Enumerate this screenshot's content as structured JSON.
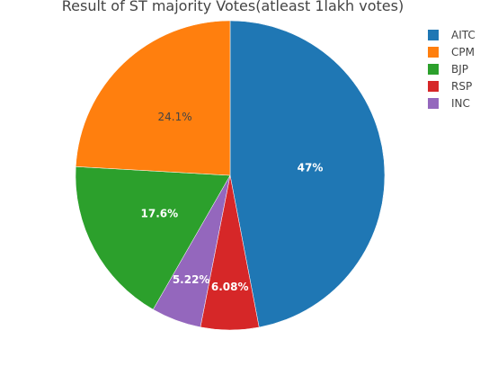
{
  "chart_data": {
    "type": "pie",
    "title": "Result of ST majority Votes(atleast 1lakh votes)",
    "slices": [
      {
        "label": "AITC",
        "percent_label": "47%",
        "value": 47.0,
        "color": "#1f77b4",
        "text_color": "#ffffff"
      },
      {
        "label": "RSP",
        "percent_label": "6.08%",
        "value": 6.08,
        "color": "#d62728",
        "text_color": "#ffffff"
      },
      {
        "label": "INC",
        "percent_label": "5.22%",
        "value": 5.22,
        "color": "#9467bd",
        "text_color": "#ffffff"
      },
      {
        "label": "BJP",
        "percent_label": "17.6%",
        "value": 17.6,
        "color": "#2ca02c",
        "text_color": "#ffffff"
      },
      {
        "label": "CPM",
        "percent_label": "24.1%",
        "value": 24.1,
        "color": "#ff7f0e",
        "text_color": "#444444"
      }
    ],
    "legend": {
      "position": "top-right",
      "order": [
        "AITC",
        "CPM",
        "BJP",
        "RSP",
        "INC"
      ]
    }
  }
}
